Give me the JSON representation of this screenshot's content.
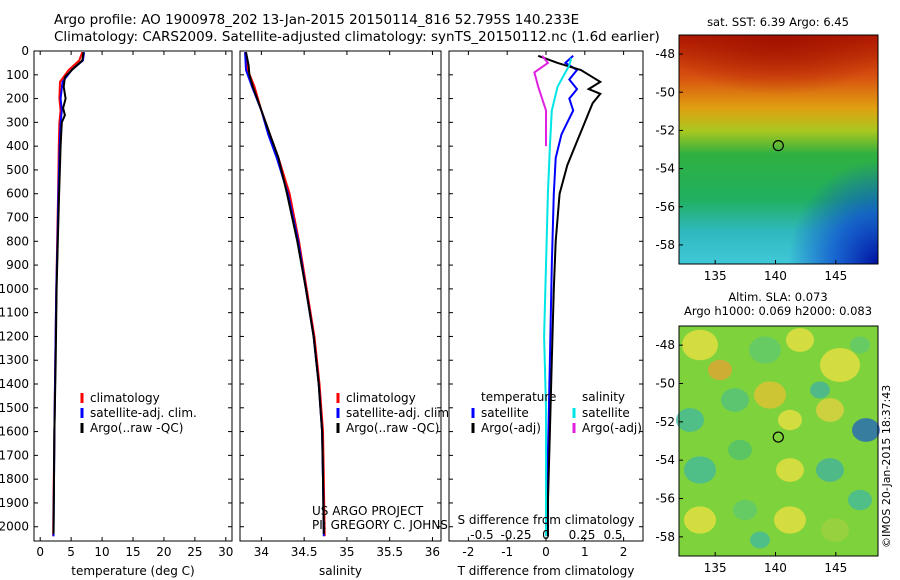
{
  "header": {
    "line1": "Argo profile: AO 1900978_202 13-Jan-2015 20150114_816 52.795S 140.233E",
    "line2": "Climatology: CARS2009. Satellite-adjusted climatology: synTS_20150112.nc (1.6d earlier)"
  },
  "colors": {
    "climatology": "#ff0000",
    "satellite": "#0000ff",
    "argo": "#000000",
    "satellite_s": "#00e5e5",
    "argo_s": "#e020e0"
  },
  "depth_ticks": [
    0,
    100,
    200,
    300,
    400,
    500,
    600,
    700,
    800,
    900,
    1000,
    1100,
    1200,
    1300,
    1400,
    1500,
    1600,
    1700,
    1800,
    1900,
    2000
  ],
  "chart_data": [
    {
      "type": "line",
      "id": "temperature",
      "xlabel": "temperature (deg C)",
      "xlim": [
        -1,
        31
      ],
      "ylim": [
        2060,
        0
      ],
      "xticks": [
        0,
        5,
        10,
        15,
        20,
        25,
        30
      ],
      "legend": {
        "placement": "bottom-left",
        "entries": [
          "climatology",
          "satellite-adj. clim.",
          "Argo(..raw -QC)"
        ]
      },
      "series": [
        {
          "name": "climatology",
          "color": "#ff0000",
          "points": [
            [
              6.8,
              5
            ],
            [
              6.3,
              40
            ],
            [
              4.6,
              80
            ],
            [
              3.2,
              130
            ],
            [
              3.1,
              200
            ],
            [
              3.3,
              250
            ],
            [
              3.1,
              300
            ],
            [
              3.0,
              400
            ],
            [
              2.9,
              600
            ],
            [
              2.75,
              800
            ],
            [
              2.6,
              1000
            ],
            [
              2.45,
              1300
            ],
            [
              2.3,
              1600
            ],
            [
              2.15,
              1900
            ],
            [
              2.1,
              2040
            ]
          ]
        },
        {
          "name": "satellite-adj. clim.",
          "color": "#0000ff",
          "points": [
            [
              7.1,
              5
            ],
            [
              6.9,
              40
            ],
            [
              5.1,
              80
            ],
            [
              3.6,
              130
            ],
            [
              3.3,
              200
            ],
            [
              3.5,
              250
            ],
            [
              3.3,
              300
            ],
            [
              3.15,
              400
            ],
            [
              2.95,
              600
            ],
            [
              2.8,
              800
            ],
            [
              2.6,
              1000
            ],
            [
              2.45,
              1300
            ],
            [
              2.3,
              1600
            ],
            [
              2.2,
              1900
            ],
            [
              2.15,
              2040
            ]
          ]
        },
        {
          "name": "Argo(..raw -QC)",
          "color": "#000000",
          "points": [
            [
              7.0,
              5
            ],
            [
              6.8,
              40
            ],
            [
              5.5,
              70
            ],
            [
              4.0,
              110
            ],
            [
              3.8,
              150
            ],
            [
              4.1,
              200
            ],
            [
              3.7,
              240
            ],
            [
              4.0,
              270
            ],
            [
              3.5,
              300
            ],
            [
              3.3,
              400
            ],
            [
              3.05,
              600
            ],
            [
              2.85,
              800
            ],
            [
              2.65,
              1000
            ],
            [
              2.5,
              1300
            ],
            [
              2.3,
              1600
            ],
            [
              2.2,
              1900
            ],
            [
              2.15,
              2030
            ]
          ]
        }
      ]
    },
    {
      "type": "line",
      "id": "salinity",
      "xlabel": "salinity",
      "xlim": [
        33.75,
        36.1
      ],
      "ylim": [
        2060,
        0
      ],
      "xticks": [
        34,
        34.5,
        35,
        35.5,
        36
      ],
      "legend": {
        "placement": "bottom-right",
        "entries": [
          "climatology",
          "satellite-adj. clim.",
          "Argo(..raw -QC)"
        ]
      },
      "annotation": [
        "US ARGO PROJECT",
        "PI: GREGORY C. JOHNSON"
      ],
      "series": [
        {
          "name": "climatology",
          "color": "#ff0000",
          "points": [
            [
              33.81,
              5
            ],
            [
              33.84,
              80
            ],
            [
              33.92,
              150
            ],
            [
              34.0,
              250
            ],
            [
              34.1,
              350
            ],
            [
              34.2,
              450
            ],
            [
              34.33,
              600
            ],
            [
              34.44,
              800
            ],
            [
              34.53,
              1000
            ],
            [
              34.62,
              1200
            ],
            [
              34.68,
              1400
            ],
            [
              34.72,
              1600
            ],
            [
              34.73,
              1800
            ],
            [
              34.74,
              2040
            ]
          ]
        },
        {
          "name": "satellite-adj. clim.",
          "color": "#0000ff",
          "points": [
            [
              33.81,
              5
            ],
            [
              33.82,
              80
            ],
            [
              33.89,
              150
            ],
            [
              34.0,
              250
            ],
            [
              34.08,
              350
            ],
            [
              34.18,
              450
            ],
            [
              34.31,
              600
            ],
            [
              34.43,
              800
            ],
            [
              34.52,
              1000
            ],
            [
              34.61,
              1200
            ],
            [
              34.67,
              1400
            ],
            [
              34.71,
              1600
            ],
            [
              34.72,
              1800
            ],
            [
              34.73,
              2040
            ]
          ]
        },
        {
          "name": "Argo(..raw -QC)",
          "color": "#000000",
          "points": [
            [
              33.82,
              5
            ],
            [
              33.85,
              60
            ],
            [
              33.86,
              100
            ],
            [
              33.9,
              150
            ],
            [
              34.0,
              250
            ],
            [
              34.1,
              350
            ],
            [
              34.2,
              450
            ],
            [
              34.3,
              600
            ],
            [
              34.42,
              800
            ],
            [
              34.52,
              1000
            ],
            [
              34.61,
              1200
            ],
            [
              34.67,
              1400
            ],
            [
              34.71,
              1600
            ],
            [
              34.72,
              1800
            ],
            [
              34.73,
              2030
            ]
          ]
        }
      ]
    },
    {
      "type": "line",
      "id": "difference",
      "xlabel": "T difference from climatology",
      "xlabel_top": "S difference from climatology",
      "xlim": [
        -2.5,
        2.5
      ],
      "ylim": [
        2060,
        0
      ],
      "xticks": [
        -2,
        -1,
        0,
        1,
        2
      ],
      "s_xticks": [
        "-0.5",
        "-0.25",
        "0",
        "0.25",
        "0.5"
      ],
      "legend": {
        "placement": "bottom",
        "temperature_title": "temperature",
        "salinity_title": "salinity",
        "temperature_entries": [
          "satellite",
          "Argo(-adj)"
        ],
        "salinity_entries": [
          "satellite",
          "Argo(-adj)"
        ]
      },
      "series": [
        {
          "name": "satellite",
          "color": "#0000ff",
          "points": [
            [
              0.7,
              20
            ],
            [
              0.5,
              50
            ],
            [
              0.8,
              80
            ],
            [
              0.6,
              120
            ],
            [
              0.8,
              160
            ],
            [
              0.6,
              200
            ],
            [
              0.7,
              250
            ],
            [
              0.4,
              350
            ],
            [
              0.25,
              450
            ],
            [
              0.2,
              600
            ],
            [
              0.15,
              900
            ],
            [
              0.1,
              1300
            ],
            [
              0.05,
              1700
            ],
            [
              0.05,
              2040
            ]
          ]
        },
        {
          "name": "Argo(-adj)",
          "color": "#000000",
          "points": [
            [
              -0.2,
              20
            ],
            [
              0.3,
              50
            ],
            [
              0.9,
              80
            ],
            [
              1.2,
              110
            ],
            [
              1.4,
              130
            ],
            [
              1.1,
              160
            ],
            [
              1.4,
              180
            ],
            [
              1.2,
              220
            ],
            [
              1.1,
              260
            ],
            [
              1.0,
              300
            ],
            [
              0.8,
              380
            ],
            [
              0.55,
              480
            ],
            [
              0.35,
              600
            ],
            [
              0.25,
              800
            ],
            [
              0.2,
              1000
            ],
            [
              0.15,
              1300
            ],
            [
              0.1,
              1600
            ],
            [
              0.05,
              1900
            ],
            [
              0.05,
              2040
            ]
          ]
        },
        {
          "name": "satellite",
          "color": "#00e5e5",
          "points": [
            [
              0.65,
              30
            ],
            [
              0.6,
              60
            ],
            [
              0.5,
              90
            ],
            [
              0.3,
              150
            ],
            [
              0.15,
              250
            ],
            [
              0.1,
              400
            ],
            [
              0.05,
              600
            ],
            [
              0.0,
              900
            ],
            [
              -0.05,
              1200
            ],
            [
              0.0,
              1500
            ],
            [
              0.0,
              1800
            ],
            [
              0.0,
              2040
            ]
          ]
        },
        {
          "name": "Argo(-adj)",
          "color": "#e020e0",
          "points": [
            [
              -0.1,
              20
            ],
            [
              0.05,
              50
            ],
            [
              -0.3,
              90
            ],
            [
              -0.2,
              150
            ],
            [
              -0.1,
              200
            ],
            [
              0.0,
              250
            ],
            [
              0.0,
              400
            ]
          ]
        }
      ]
    },
    {
      "type": "heatmap",
      "id": "sst-map",
      "title": "sat. SST: 6.39  Argo: 6.45",
      "xticks": [
        135,
        140,
        145
      ],
      "yticks": [
        -48,
        -50,
        -52,
        -54,
        -56,
        -58
      ],
      "xlim": [
        132,
        148.5
      ],
      "ylim": [
        -59,
        -47
      ],
      "marker": {
        "lon": 140.233,
        "lat": -52.795
      }
    },
    {
      "type": "heatmap",
      "id": "sla-map",
      "title_line1": "Altim. SLA: 0.073",
      "title_line2": "Argo h1000: 0.069 h2000: 0.083",
      "xticks": [
        135,
        140,
        145
      ],
      "yticks": [
        -48,
        -50,
        -52,
        -54,
        -56,
        -58
      ],
      "xlim": [
        132,
        148.5
      ],
      "ylim": [
        -59,
        -47
      ],
      "marker": {
        "lon": 140.233,
        "lat": -52.795
      }
    }
  ],
  "credit": "©IMOS 20-Jan-2015 18:37:43"
}
